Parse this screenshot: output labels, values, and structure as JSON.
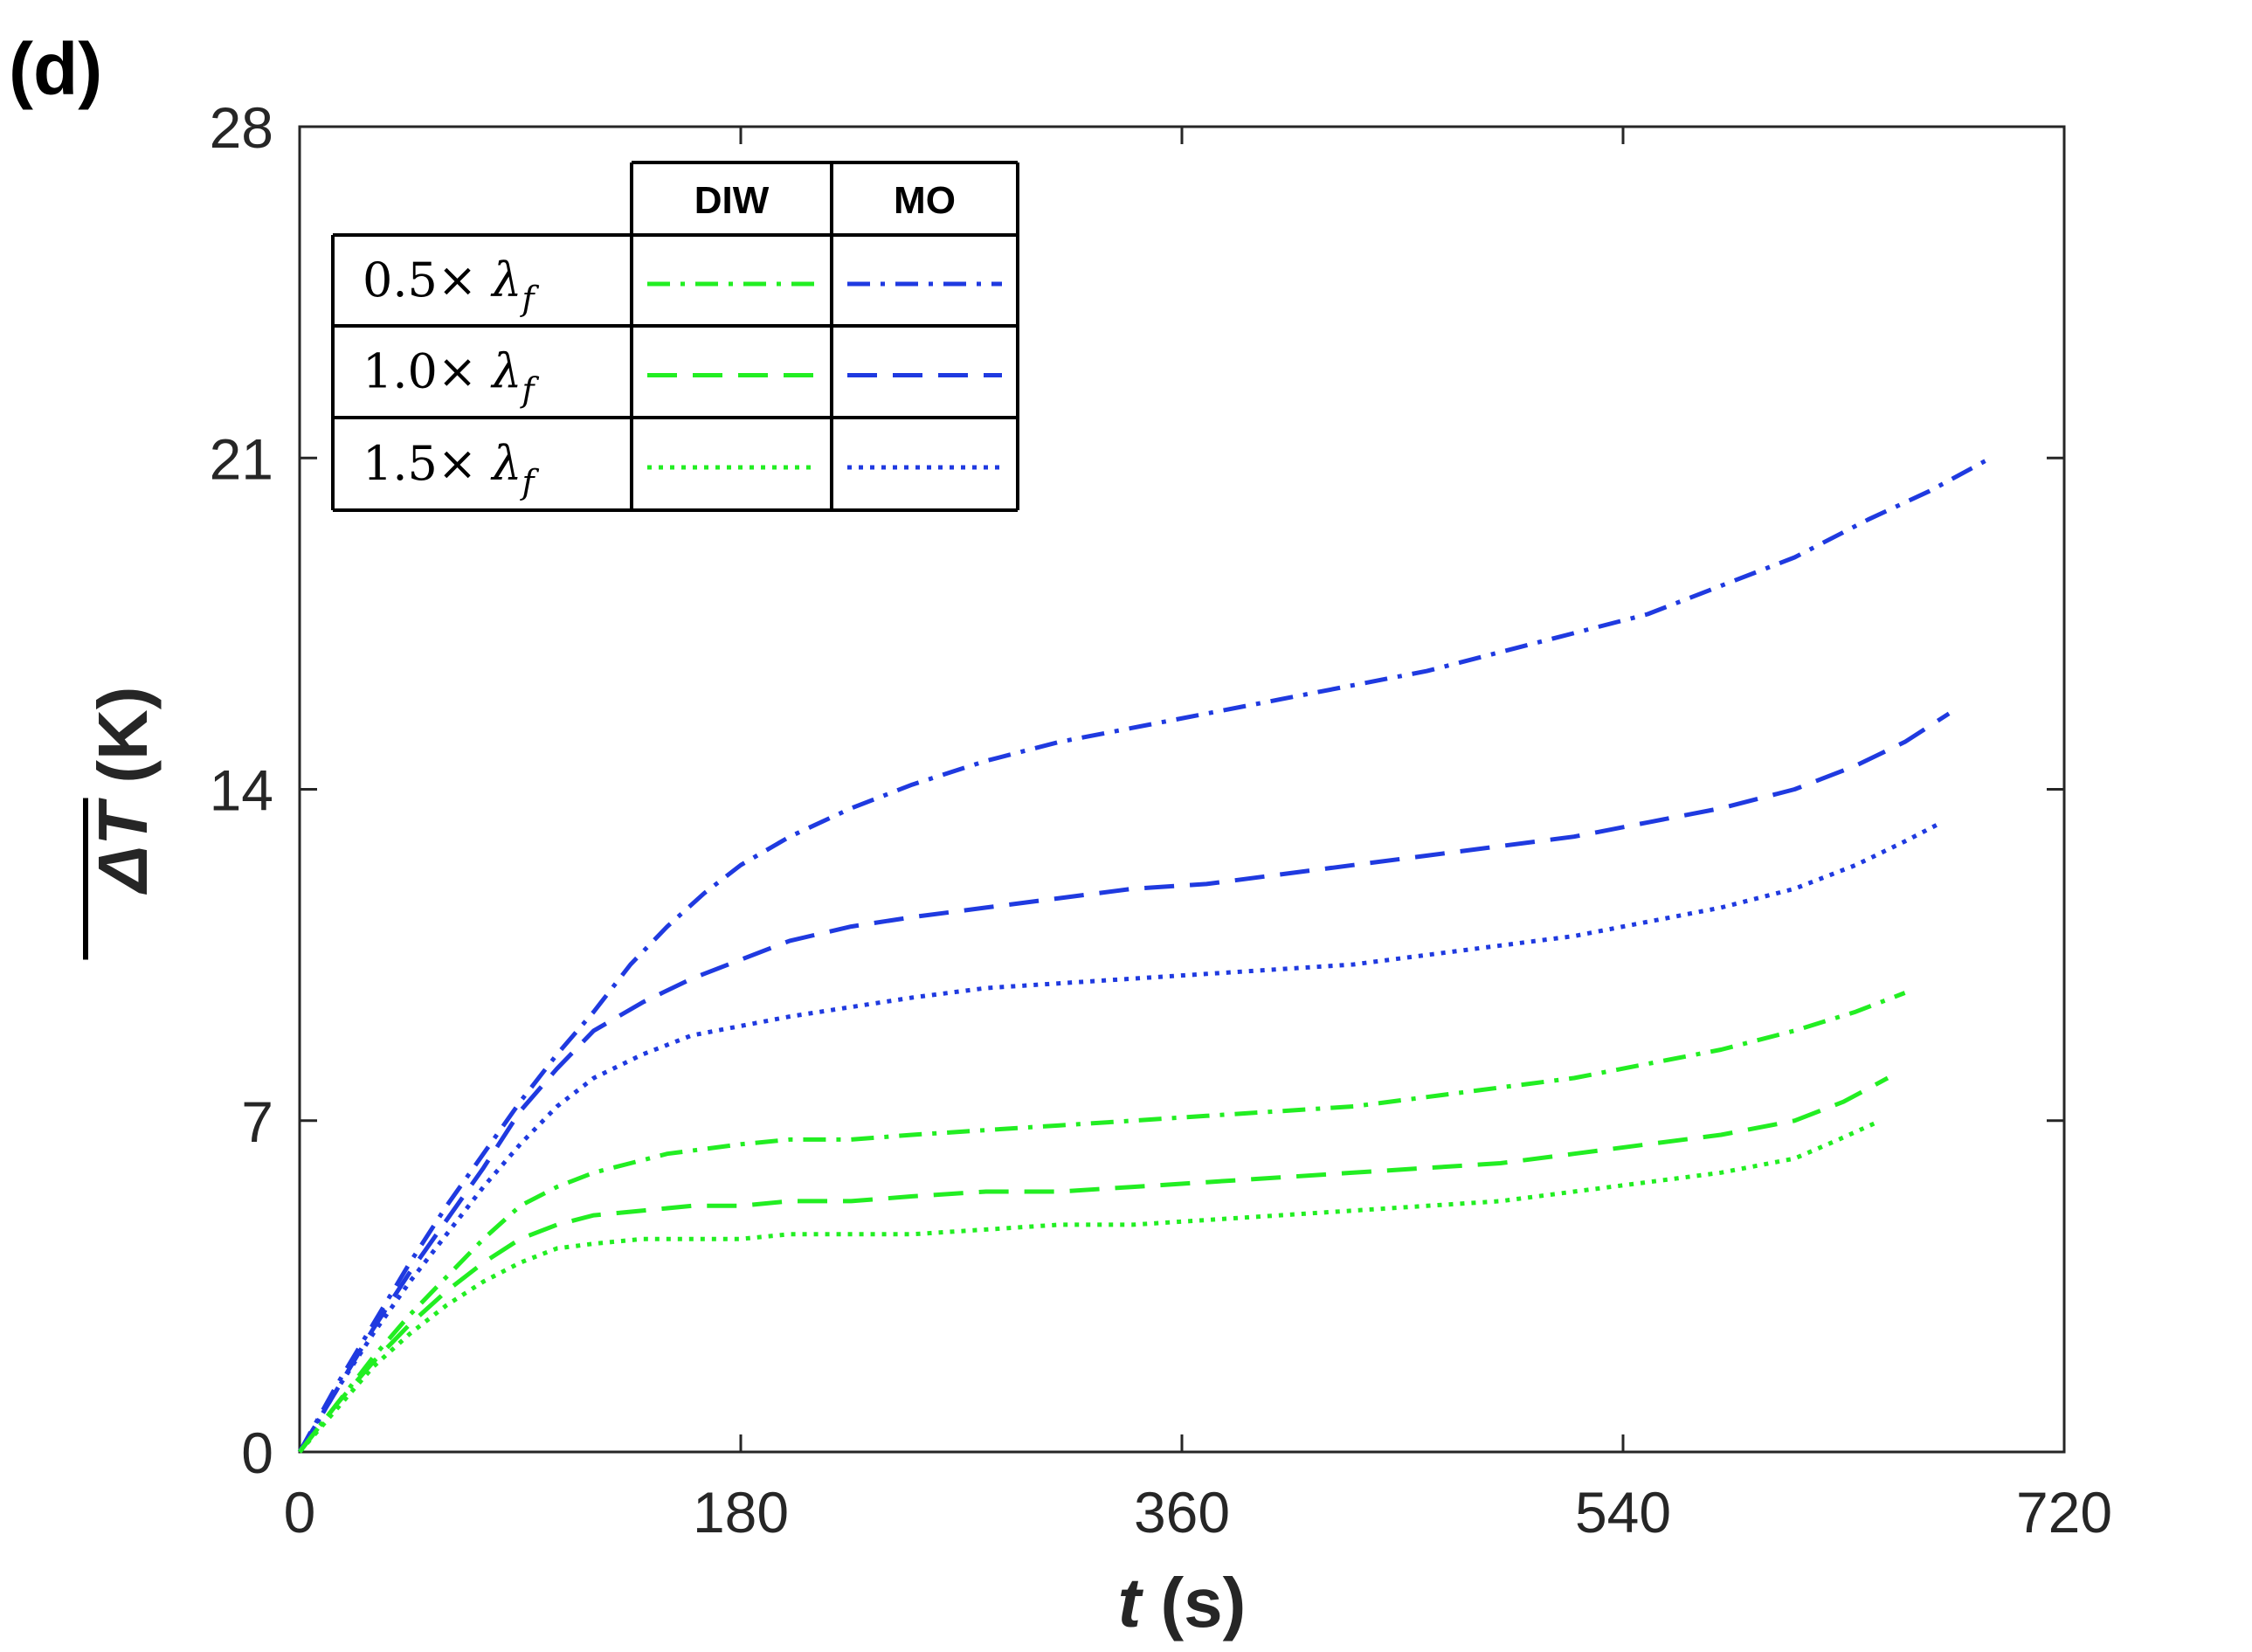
{
  "panel_label": "(d)",
  "colors": {
    "DIW": "#22ee22",
    "MO": "#1f3ae0",
    "axis": "#262626"
  },
  "legend": {
    "headers": [
      "DIW",
      "MO"
    ],
    "rows": [
      {
        "prefix": "0.5×",
        "symbol": "λ",
        "subscript": "f",
        "style": "dashdot"
      },
      {
        "prefix": "1.0×",
        "symbol": "λ",
        "subscript": "f",
        "style": "dash"
      },
      {
        "prefix": "1.5×",
        "symbol": "λ",
        "subscript": "f",
        "style": "dot"
      }
    ]
  },
  "chart_data": {
    "type": "line",
    "xlabel": {
      "var": "t",
      "unit": " (s)"
    },
    "ylabel": {
      "var": "ΔT",
      "unit": " (K)"
    },
    "xlim": [
      0,
      720
    ],
    "ylim": [
      0,
      28
    ],
    "xticks": [
      0,
      180,
      360,
      540,
      720
    ],
    "yticks": [
      0,
      7,
      14,
      21,
      28
    ],
    "grid": false,
    "series": [
      {
        "fluid": "MO",
        "factor": "0.5×",
        "style": "dashdot",
        "x": [
          0,
          15,
          30,
          45,
          60,
          75,
          90,
          105,
          120,
          135,
          150,
          165,
          180,
          200,
          225,
          250,
          280,
          310,
          340,
          370,
          400,
          430,
          460,
          490,
          520,
          550,
          580,
          610,
          640,
          665,
          690
        ],
        "y": [
          0,
          1.4,
          2.7,
          4.0,
          5.2,
          6.3,
          7.4,
          8.4,
          9.3,
          10.3,
          11.1,
          11.8,
          12.4,
          13.0,
          13.6,
          14.1,
          14.6,
          15.0,
          15.3,
          15.6,
          15.9,
          16.2,
          16.5,
          16.9,
          17.3,
          17.7,
          18.3,
          18.9,
          19.7,
          20.3,
          21.0
        ]
      },
      {
        "fluid": "MO",
        "factor": "1.0×",
        "style": "dash",
        "x": [
          0,
          15,
          30,
          45,
          60,
          75,
          90,
          105,
          120,
          140,
          160,
          180,
          200,
          225,
          250,
          280,
          310,
          340,
          370,
          400,
          430,
          460,
          490,
          520,
          550,
          580,
          610,
          635,
          655,
          673
        ],
        "y": [
          0,
          1.3,
          2.6,
          3.8,
          4.9,
          6.0,
          7.2,
          8.1,
          8.9,
          9.5,
          10.0,
          10.4,
          10.8,
          11.1,
          11.3,
          11.5,
          11.7,
          11.9,
          12.0,
          12.2,
          12.4,
          12.6,
          12.8,
          13.0,
          13.3,
          13.6,
          14.0,
          14.5,
          15.0,
          15.6
        ]
      },
      {
        "fluid": "MO",
        "factor": "1.5×",
        "style": "dot",
        "x": [
          0,
          15,
          30,
          45,
          60,
          75,
          90,
          105,
          120,
          140,
          160,
          180,
          200,
          225,
          250,
          280,
          310,
          340,
          370,
          400,
          430,
          460,
          490,
          520,
          550,
          580,
          610,
          635,
          655,
          670
        ],
        "y": [
          0,
          1.3,
          2.5,
          3.6,
          4.6,
          5.6,
          6.5,
          7.3,
          7.9,
          8.4,
          8.8,
          9.0,
          9.2,
          9.4,
          9.6,
          9.8,
          9.9,
          10.0,
          10.1,
          10.2,
          10.3,
          10.5,
          10.7,
          10.9,
          11.2,
          11.5,
          11.9,
          12.4,
          12.9,
          13.3
        ]
      },
      {
        "fluid": "DIW",
        "factor": "0.5×",
        "style": "dashdot",
        "x": [
          0,
          15,
          30,
          45,
          60,
          75,
          90,
          105,
          120,
          135,
          150,
          165,
          180,
          200,
          225,
          250,
          280,
          310,
          340,
          370,
          400,
          430,
          460,
          490,
          520,
          550,
          580,
          610,
          635,
          655
        ],
        "y": [
          0,
          1.0,
          2.0,
          2.9,
          3.7,
          4.5,
          5.2,
          5.6,
          5.9,
          6.1,
          6.3,
          6.4,
          6.5,
          6.6,
          6.6,
          6.7,
          6.8,
          6.9,
          7.0,
          7.1,
          7.2,
          7.3,
          7.5,
          7.7,
          7.9,
          8.2,
          8.5,
          8.9,
          9.3,
          9.7
        ]
      },
      {
        "fluid": "DIW",
        "factor": "1.0×",
        "style": "dash",
        "x": [
          0,
          15,
          30,
          45,
          60,
          75,
          90,
          105,
          120,
          140,
          160,
          180,
          200,
          225,
          250,
          280,
          310,
          340,
          370,
          400,
          430,
          460,
          490,
          520,
          550,
          580,
          610,
          630,
          648
        ],
        "y": [
          0,
          1.0,
          1.9,
          2.7,
          3.4,
          4.0,
          4.5,
          4.8,
          5.0,
          5.1,
          5.2,
          5.2,
          5.3,
          5.3,
          5.4,
          5.5,
          5.5,
          5.6,
          5.7,
          5.8,
          5.9,
          6.0,
          6.1,
          6.3,
          6.5,
          6.7,
          7.0,
          7.4,
          7.9
        ]
      },
      {
        "fluid": "DIW",
        "factor": "1.5×",
        "style": "dot",
        "x": [
          0,
          15,
          30,
          45,
          60,
          75,
          90,
          105,
          120,
          140,
          160,
          180,
          200,
          225,
          250,
          280,
          310,
          340,
          370,
          400,
          430,
          460,
          490,
          520,
          550,
          580,
          610,
          628,
          645
        ],
        "y": [
          0,
          0.9,
          1.8,
          2.5,
          3.1,
          3.6,
          4.0,
          4.3,
          4.4,
          4.5,
          4.5,
          4.5,
          4.6,
          4.6,
          4.6,
          4.7,
          4.8,
          4.8,
          4.9,
          5.0,
          5.1,
          5.2,
          5.3,
          5.5,
          5.7,
          5.9,
          6.2,
          6.6,
          7.0
        ]
      }
    ]
  }
}
